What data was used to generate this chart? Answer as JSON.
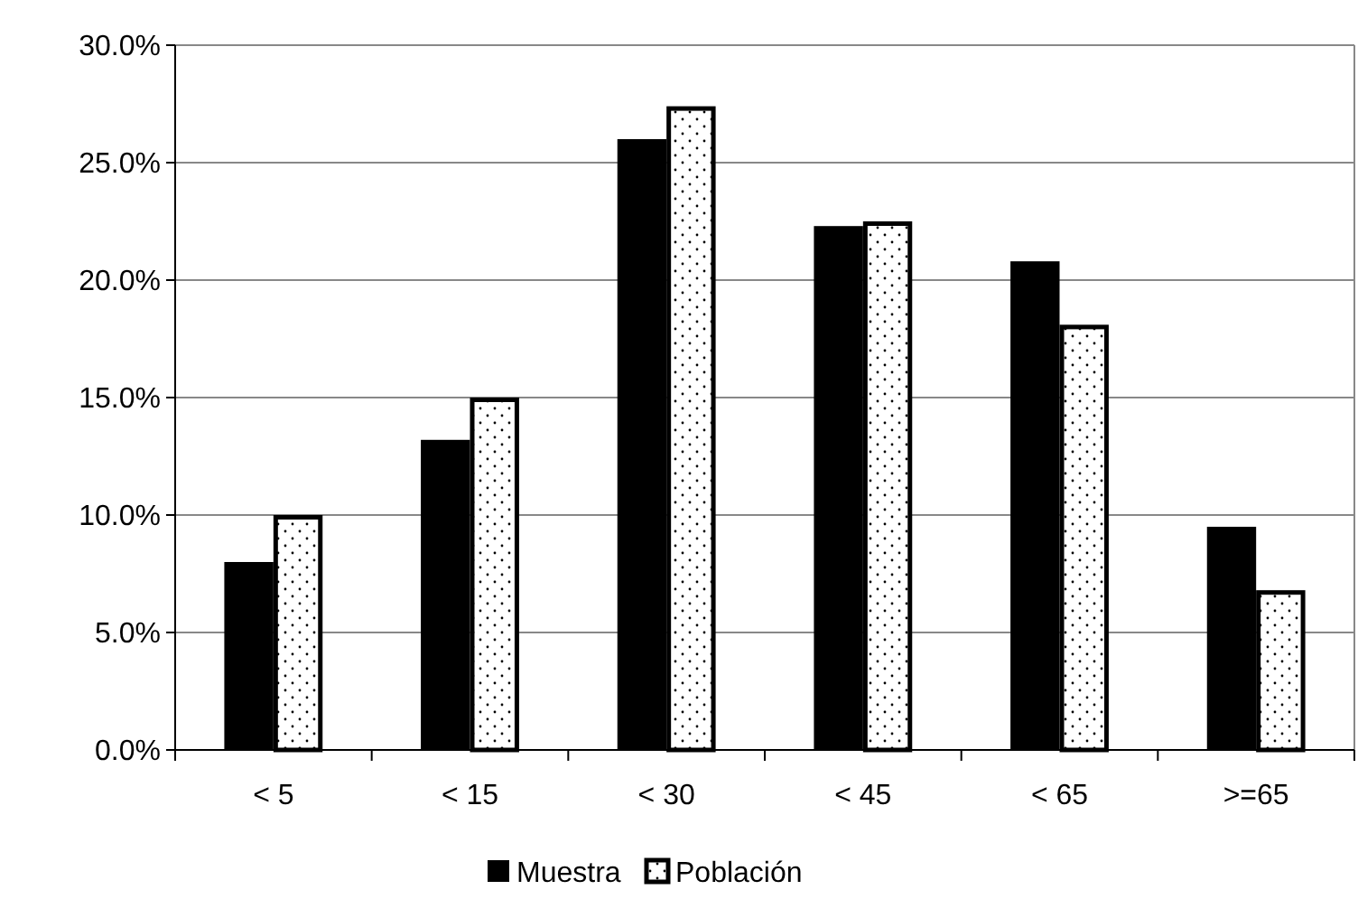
{
  "chart_data": {
    "type": "bar",
    "categories": [
      "< 5",
      "< 15",
      "< 30",
      "< 45",
      "< 65",
      ">=65"
    ],
    "series": [
      {
        "name": "Muestra",
        "color": "#000000",
        "values": [
          8.0,
          13.2,
          26.0,
          22.3,
          20.8,
          9.5
        ]
      },
      {
        "name": "Población",
        "color": "#000000",
        "values": [
          10.0,
          15.0,
          27.4,
          22.5,
          18.1,
          6.8
        ]
      }
    ],
    "ylim": [
      0,
      30
    ],
    "yticks": [
      {
        "value": 0,
        "label": "0.0%"
      },
      {
        "value": 5,
        "label": "5.0%"
      },
      {
        "value": 10,
        "label": "10.0%"
      },
      {
        "value": 15,
        "label": "15.0%"
      },
      {
        "value": 20,
        "label": "20.0%"
      },
      {
        "value": 25,
        "label": "25.0%"
      },
      {
        "value": 30,
        "label": "30.0%"
      }
    ],
    "grid": "y",
    "legend": "bottom"
  }
}
